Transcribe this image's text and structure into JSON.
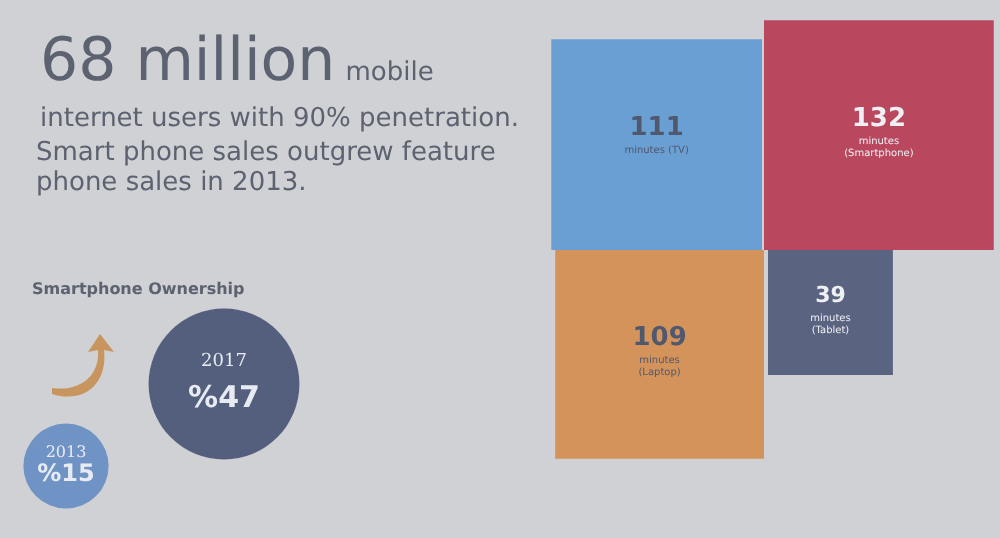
{
  "chart_data": [
    {
      "type": "other",
      "title": "68 million",
      "subtitle": "mobile internet users with 90% penetration.",
      "annotations": [
        "Smart phone sales outgrew feature phone sales in 2013."
      ]
    },
    {
      "type": "other",
      "title": "Smartphone Ownership",
      "categories": [
        "2013",
        "2017"
      ],
      "values": [
        15,
        47
      ],
      "value_labels": [
        "%15",
        "%47"
      ],
      "colors": [
        "#6f93c4",
        "#545f7e"
      ]
    },
    {
      "type": "other",
      "categories": [
        "minutes (TV)",
        "minutes (Smartphone)",
        "minutes (Laptop)",
        "minutes (Tablet)"
      ],
      "values": [
        111,
        132,
        109,
        39
      ],
      "colors": [
        "#6a9fd4",
        "#b9485f",
        "#d4935a",
        "#5a6380"
      ],
      "data_labels": true
    }
  ]
}
